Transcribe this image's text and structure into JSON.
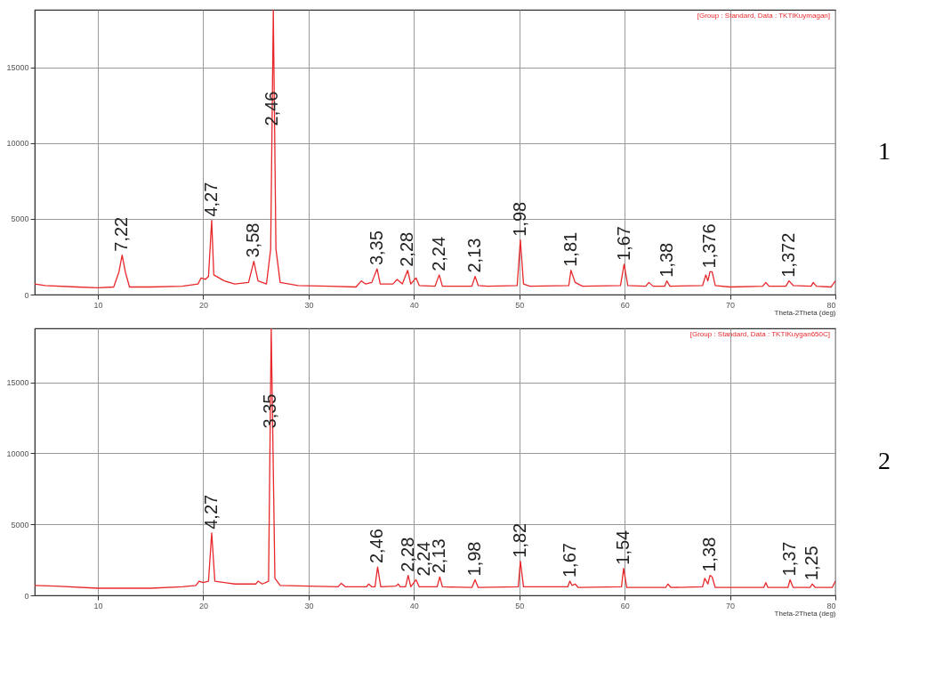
{
  "chart_data": [
    {
      "type": "line",
      "xlabel": "Theta-2Theta (deg)",
      "xlim": [
        4,
        80
      ],
      "ylim": [
        0,
        18800
      ],
      "xticks": [
        10,
        20,
        30,
        40,
        50,
        60,
        70,
        80
      ],
      "yticks": [
        0,
        5000,
        10000,
        15000
      ],
      "grid": true,
      "series": [
        {
          "color": "#e8282b",
          "x": [
            4,
            5,
            8,
            10,
            11.5,
            12.0,
            12.3,
            12.6,
            13,
            15,
            18,
            19.5,
            19.8,
            20.2,
            20.5,
            20.8,
            21.0,
            22,
            23,
            24.3,
            24.8,
            25.2,
            26.0,
            26.4,
            26.65,
            26.9,
            27.3,
            29,
            32,
            34.5,
            35,
            35.4,
            36.0,
            36.5,
            36.8,
            38.0,
            38.4,
            38.9,
            39.4,
            39.7,
            40.2,
            40.5,
            42.0,
            42.4,
            42.7,
            45.5,
            45.8,
            46.1,
            47,
            49.8,
            50.1,
            50.4,
            51,
            54.7,
            54.9,
            55.3,
            56,
            59.6,
            59.95,
            60.3,
            62.0,
            62.3,
            62.7,
            63.8,
            64.0,
            64.3,
            67.4,
            67.7,
            67.9,
            68.1,
            68.3,
            68.6,
            70,
            73.1,
            73.4,
            73.7,
            75.3,
            75.6,
            76.0,
            77.7,
            77.9,
            78.2,
            79.6,
            80
          ],
          "values": [
            700,
            600,
            500,
            450,
            500,
            1500,
            2600,
            1500,
            500,
            500,
            550,
            700,
            1100,
            1000,
            1200,
            4900,
            1300,
            900,
            700,
            800,
            2200,
            900,
            700,
            3000,
            18800,
            3000,
            800,
            600,
            550,
            500,
            900,
            700,
            800,
            1700,
            700,
            700,
            1000,
            700,
            1600,
            700,
            1100,
            600,
            550,
            1300,
            550,
            550,
            1200,
            600,
            550,
            600,
            3600,
            700,
            550,
            600,
            1600,
            800,
            550,
            600,
            2000,
            600,
            550,
            800,
            550,
            550,
            900,
            550,
            600,
            1300,
            900,
            1500,
            1500,
            600,
            500,
            550,
            800,
            550,
            550,
            900,
            600,
            550,
            800,
            550,
            500,
            900
          ]
        }
      ],
      "annotations": [
        "[Group : Standard, Data : TKTIKuymagan]",
        "1",
        {
          "text": "7,22",
          "x": 12.3,
          "y": 2600
        },
        {
          "text": "4,27",
          "x": 20.8,
          "y": 4900
        },
        {
          "text": "3,58",
          "x": 24.8,
          "y": 2200
        },
        {
          "text": "2,46",
          "x": 26.53,
          "y": 10900
        },
        {
          "text": "3,35",
          "x": 36.5,
          "y": 1700
        },
        {
          "text": "2,28",
          "x": 39.4,
          "y": 1600
        },
        {
          "text": "2,24",
          "x": 42.4,
          "y": 1300
        },
        {
          "text": "2,13",
          "x": 45.8,
          "y": 1200
        },
        {
          "text": "1,98",
          "x": 50.1,
          "y": 3600
        },
        {
          "text": "1,81",
          "x": 54.9,
          "y": 1600
        },
        {
          "text": "1,67",
          "x": 59.95,
          "y": 2000
        },
        {
          "text": "1,38",
          "x": 64.0,
          "y": 900
        },
        {
          "text": "1,376",
          "x": 68.1,
          "y": 1500
        },
        {
          "text": "1,372",
          "x": 75.6,
          "y": 900
        }
      ]
    },
    {
      "type": "line",
      "xlabel": "Theta-2Theta (deg)",
      "xlim": [
        4,
        80
      ],
      "ylim": [
        0,
        18800
      ],
      "xticks": [
        10,
        20,
        30,
        40,
        50,
        60,
        70,
        80
      ],
      "yticks": [
        0,
        5000,
        10000,
        15000
      ],
      "grid": true,
      "series": [
        {
          "color": "#e8282b",
          "x": [
            4,
            6,
            10,
            15,
            18,
            19.3,
            19.6,
            20.0,
            20.5,
            20.8,
            21.1,
            23,
            25,
            25.2,
            25.6,
            26.2,
            26.45,
            26.8,
            27.3,
            30,
            32.8,
            33.1,
            33.5,
            35.5,
            35.7,
            36.0,
            36.3,
            36.55,
            36.85,
            38.3,
            38.5,
            38.7,
            39.2,
            39.45,
            39.7,
            40.2,
            40.5,
            42.2,
            42.45,
            42.7,
            45.5,
            45.8,
            46.1,
            49.9,
            50.1,
            50.4,
            54.6,
            54.8,
            55.0,
            55.3,
            55.6,
            59.7,
            59.9,
            60.2,
            63.9,
            64.1,
            64.4,
            67.4,
            67.6,
            67.9,
            68.1,
            68.3,
            68.6,
            73.2,
            73.4,
            73.6,
            75.5,
            75.7,
            76.0,
            77.6,
            77.8,
            78.1,
            79.7,
            80
          ],
          "values": [
            700,
            650,
            500,
            500,
            600,
            700,
            1000,
            900,
            1000,
            4400,
            1000,
            800,
            800,
            1000,
            800,
            1000,
            18800,
            1200,
            700,
            650,
            600,
            850,
            600,
            600,
            800,
            600,
            600,
            2000,
            600,
            650,
            800,
            600,
            600,
            1400,
            600,
            1100,
            600,
            600,
            1300,
            600,
            550,
            1100,
            550,
            600,
            2400,
            600,
            600,
            1000,
            700,
            800,
            550,
            600,
            1900,
            550,
            550,
            800,
            550,
            600,
            1200,
            800,
            1400,
            1300,
            550,
            550,
            900,
            550,
            550,
            1100,
            550,
            550,
            800,
            550,
            550,
            1000
          ]
        }
      ],
      "annotations": [
        "[Group : Standard, Data : TKTIKuygan650C]",
        "2",
        {
          "text": "4,27",
          "x": 20.8,
          "y": 4400
        },
        {
          "text": "3,35",
          "x": 26.35,
          "y": 11500
        },
        {
          "text": "2,46",
          "x": 36.55,
          "y": 2000
        },
        {
          "text": "2,28",
          "x": 39.45,
          "y": 1400
        },
        {
          "text": "2,24",
          "x": 40.2,
          "y": 1100
        },
        {
          "text": "2,13",
          "x": 42.45,
          "y": 1300
        },
        {
          "text": "1,98",
          "x": 45.8,
          "y": 1100
        },
        {
          "text": "1,82",
          "x": 50.1,
          "y": 2400
        },
        {
          "text": "1,67",
          "x": 54.8,
          "y": 1000
        },
        {
          "text": "1,54",
          "x": 59.9,
          "y": 1900
        },
        {
          "text": "1,38",
          "x": 68.1,
          "y": 1400
        },
        {
          "text": "1,37",
          "x": 75.7,
          "y": 1100
        },
        {
          "text": "1,25",
          "x": 77.8,
          "y": 800
        }
      ]
    }
  ]
}
